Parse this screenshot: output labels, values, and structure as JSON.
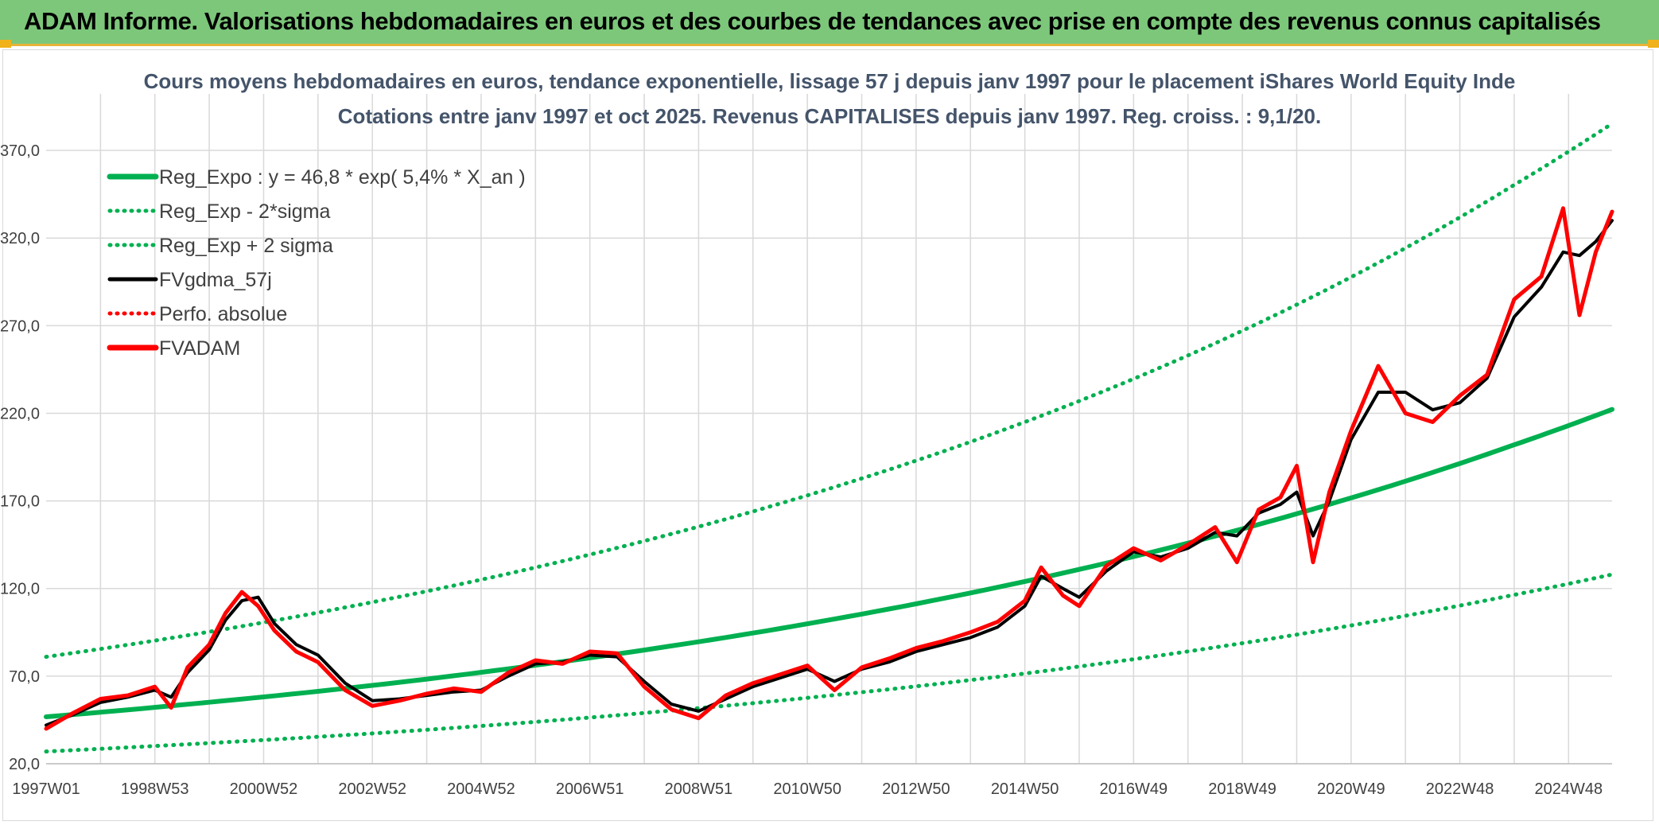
{
  "header": {
    "title": "ADAM Informe. Valorisations hebdomadaires en euros et des courbes de tendances avec prise en compte des revenus connus capitalisés"
  },
  "colors": {
    "banner": "#7cc77a",
    "trend": "#00b050",
    "smooth": "#000000",
    "price": "#ff0000",
    "grid": "#d9d9d9",
    "text": "#404040"
  },
  "chart_data": {
    "type": "line",
    "title": "Cours moyens hebdomadaires en euros, tendance exponentielle, lissage 57 j depuis janv 1997 pour le placement iShares World Equity Inde",
    "subtitle": "Cotations entre janv 1997 et oct 2025. Revenus CAPITALISES depuis janv 1997. Reg. croiss. : 9,1/20.",
    "xlabel": "",
    "ylabel": "",
    "x_range": [
      1997.0,
      2025.8
    ],
    "ylim": [
      20,
      390
    ],
    "y_ticks": [
      "20,0",
      "70,0",
      "120,0",
      "170,0",
      "220,0",
      "270,0",
      "320,0",
      "370,0"
    ],
    "y_tick_values": [
      20,
      70,
      120,
      170,
      220,
      270,
      320,
      370
    ],
    "x_ticks": [
      "1997W01",
      "1998W53",
      "2000W52",
      "2002W52",
      "2004W52",
      "2006W51",
      "2008W51",
      "2010W50",
      "2012W50",
      "2014W50",
      "2016W49",
      "2018W49",
      "2020W49",
      "2022W48",
      "2024W48"
    ],
    "x_tick_values": [
      1997.0,
      1999.0,
      2001.0,
      2003.0,
      2005.0,
      2007.0,
      2009.0,
      2011.0,
      2013.0,
      2015.0,
      2017.0,
      2019.0,
      2021.0,
      2023.0,
      2025.0
    ],
    "gridlines": true,
    "legend_position": "top-left",
    "legend": [
      {
        "label": "Reg_Expo : y = 46,8 * exp( 5,4% *  X_an )",
        "color": "#00b050",
        "style": "thick"
      },
      {
        "label": "Reg_Exp - 2*sigma",
        "color": "#00b050",
        "style": "dotted"
      },
      {
        "label": "Reg_Exp + 2 sigma",
        "color": "#00b050",
        "style": "dotted"
      },
      {
        "label": "FVgdma_57j",
        "color": "#000000",
        "style": "solid"
      },
      {
        "label": "Perfo. absolue",
        "color": "#ff0000",
        "style": "dotted"
      },
      {
        "label": "FVADAM",
        "color": "#ff0000",
        "style": "thick"
      }
    ],
    "series": [
      {
        "name": "Reg_Expo",
        "x": [
          1997.0,
          2000.0,
          2003.0,
          2006.0,
          2009.0,
          2012.0,
          2015.0,
          2018.0,
          2021.0,
          2024.0,
          2025.8
        ],
        "values": [
          46.8,
          55.1,
          64.7,
          76.2,
          89.6,
          105.4,
          124.0,
          145.9,
          171.7,
          202.0,
          222.2
        ]
      },
      {
        "name": "Reg_Exp - 2*sigma",
        "x": [
          1997.0,
          2000.0,
          2003.0,
          2006.0,
          2009.0,
          2012.0,
          2015.0,
          2018.0,
          2021.0,
          2024.0,
          2025.8
        ],
        "values": [
          27.0,
          31.8,
          37.3,
          43.9,
          51.7,
          60.8,
          71.5,
          84.1,
          98.9,
          116.4,
          128.0
        ]
      },
      {
        "name": "Reg_Exp + 2 sigma",
        "x": [
          1997.0,
          2000.0,
          2003.0,
          2006.0,
          2009.0,
          2012.0,
          2015.0,
          2018.0,
          2021.0,
          2024.0,
          2025.8
        ],
        "values": [
          81.0,
          95.3,
          112.2,
          132.0,
          155.3,
          182.8,
          215.0,
          253.0,
          297.7,
          350.3,
          385.3
        ]
      },
      {
        "name": "FVgdma_57j",
        "x": [
          1997.0,
          1997.5,
          1998.0,
          1998.5,
          1999.0,
          1999.3,
          1999.6,
          2000.0,
          2000.3,
          2000.6,
          2000.9,
          2001.2,
          2001.6,
          2002.0,
          2002.5,
          2003.0,
          2003.5,
          2004.0,
          2004.5,
          2005.0,
          2005.5,
          2006.0,
          2006.5,
          2007.0,
          2007.5,
          2008.0,
          2008.5,
          2009.0,
          2009.5,
          2010.0,
          2010.5,
          2011.0,
          2011.5,
          2012.0,
          2012.5,
          2013.0,
          2013.5,
          2014.0,
          2014.5,
          2015.0,
          2015.3,
          2015.7,
          2016.0,
          2016.5,
          2017.0,
          2017.5,
          2018.0,
          2018.5,
          2018.9,
          2019.3,
          2019.7,
          2020.0,
          2020.3,
          2020.6,
          2021.0,
          2021.5,
          2022.0,
          2022.5,
          2023.0,
          2023.5,
          2024.0,
          2024.5,
          2024.9,
          2025.2,
          2025.5,
          2025.8
        ],
        "values": [
          42,
          48,
          55,
          58,
          62,
          58,
          72,
          85,
          102,
          113,
          115,
          100,
          88,
          82,
          66,
          56,
          57,
          59,
          61,
          62,
          70,
          77,
          78,
          82,
          81,
          67,
          54,
          50,
          57,
          64,
          69,
          74,
          67,
          74,
          78,
          84,
          88,
          92,
          98,
          110,
          127,
          120,
          115,
          130,
          141,
          138,
          143,
          152,
          150,
          163,
          168,
          175,
          150,
          170,
          205,
          232,
          232,
          222,
          226,
          240,
          275,
          292,
          312,
          310,
          318,
          330
        ]
      },
      {
        "name": "FVADAM",
        "x": [
          1997.0,
          1997.5,
          1998.0,
          1998.5,
          1999.0,
          1999.3,
          1999.6,
          2000.0,
          2000.3,
          2000.6,
          2000.9,
          2001.2,
          2001.6,
          2002.0,
          2002.5,
          2003.0,
          2003.5,
          2004.0,
          2004.5,
          2005.0,
          2005.5,
          2006.0,
          2006.5,
          2007.0,
          2007.5,
          2008.0,
          2008.5,
          2009.0,
          2009.5,
          2010.0,
          2010.5,
          2011.0,
          2011.5,
          2012.0,
          2012.5,
          2013.0,
          2013.5,
          2014.0,
          2014.5,
          2015.0,
          2015.3,
          2015.7,
          2016.0,
          2016.5,
          2017.0,
          2017.5,
          2018.0,
          2018.5,
          2018.9,
          2019.3,
          2019.7,
          2020.0,
          2020.3,
          2020.6,
          2021.0,
          2021.5,
          2022.0,
          2022.5,
          2023.0,
          2023.5,
          2024.0,
          2024.5,
          2024.9,
          2025.2,
          2025.5,
          2025.8
        ],
        "values": [
          40,
          49,
          57,
          59,
          64,
          52,
          75,
          88,
          106,
          118,
          110,
          96,
          84,
          78,
          62,
          53,
          56,
          60,
          63,
          61,
          72,
          79,
          77,
          84,
          83,
          64,
          51,
          46,
          59,
          66,
          71,
          76,
          62,
          75,
          80,
          86,
          90,
          95,
          101,
          113,
          132,
          116,
          110,
          133,
          143,
          136,
          145,
          155,
          135,
          165,
          172,
          190,
          135,
          175,
          210,
          247,
          220,
          215,
          230,
          242,
          285,
          298,
          337,
          276,
          312,
          335
        ]
      }
    ]
  }
}
